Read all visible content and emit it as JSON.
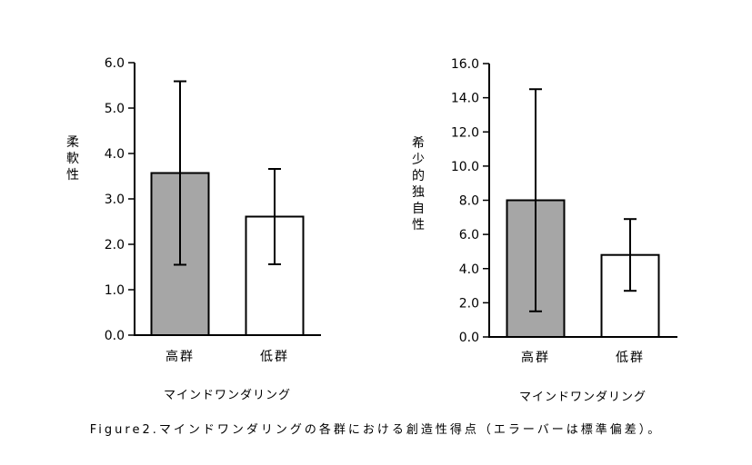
{
  "caption": "Figure2.マインドワンダリングの各群における創造性得点（エラーバーは標準偏差）。",
  "chart_data": [
    {
      "type": "bar",
      "categories": [
        "高群",
        "低群"
      ],
      "values": [
        3.57,
        2.61
      ],
      "error": [
        2.02,
        1.05
      ],
      "ylabel": "柔軟性",
      "xlabel": "マインドワンダリング",
      "ylim": [
        0,
        6.0
      ],
      "yticks": [
        "0.0",
        "1.0",
        "2.0",
        "3.0",
        "4.0",
        "5.0",
        "6.0"
      ],
      "colors": [
        "#a6a6a6",
        "#ffffff"
      ]
    },
    {
      "type": "bar",
      "categories": [
        "高群",
        "低群"
      ],
      "values": [
        8.0,
        4.8
      ],
      "error": [
        6.5,
        2.1
      ],
      "ylabel": "希少的独自性",
      "xlabel": "マインドワンダリング",
      "ylim": [
        0,
        16.0
      ],
      "yticks": [
        "0.0",
        "2.0",
        "4.0",
        "6.0",
        "8.0",
        "10.0",
        "12.0",
        "14.0",
        "16.0"
      ],
      "colors": [
        "#a6a6a6",
        "#ffffff"
      ]
    }
  ]
}
